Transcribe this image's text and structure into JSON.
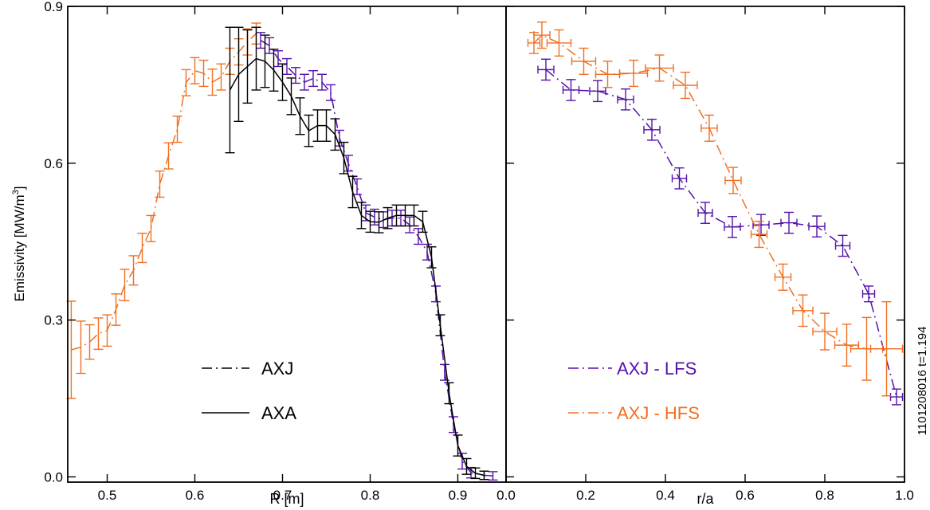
{
  "colors": {
    "axj_lfs": "#5511aa",
    "axj_hfs": "#f26f21",
    "black": "#000000"
  },
  "annotation": "1101208016  t=1.194",
  "chart_data": [
    {
      "type": "line",
      "xlabel": "R [m]",
      "ylabel": "Emissivity [MW/m³]",
      "ylabel_main": "Emissivity [MW/m",
      "ylabel_sup": "3",
      "ylabel_end": "]",
      "xlim": [
        0.455,
        0.955
      ],
      "ylim": [
        -0.01,
        0.9
      ],
      "xticks": [
        0.5,
        0.6,
        0.7,
        0.8,
        0.9
      ],
      "xtick_labels": [
        "0.5",
        "0.6",
        "0.7",
        "0.8",
        "0.9"
      ],
      "yticks": [
        0.0,
        0.3,
        0.6,
        0.9
      ],
      "ytick_labels": [
        "0.0",
        "0.3",
        "0.6",
        "0.9"
      ],
      "grid": false,
      "legend_placement": "bottom-center",
      "legend": [
        {
          "label": "AXJ",
          "style": "dash-dot"
        },
        {
          "label": "AXA",
          "style": "solid"
        }
      ],
      "series": [
        {
          "style": "dash-dot",
          "color": "#f26f21",
          "points": [
            [
              0.459,
              0.243,
              0.093
            ],
            [
              0.47,
              0.248,
              0.05
            ],
            [
              0.48,
              0.258,
              0.033
            ],
            [
              0.49,
              0.274,
              0.03
            ],
            [
              0.5,
              0.28,
              0.03
            ],
            [
              0.51,
              0.32,
              0.03
            ],
            [
              0.52,
              0.367,
              0.03
            ],
            [
              0.53,
              0.395,
              0.028
            ],
            [
              0.54,
              0.438,
              0.028
            ],
            [
              0.55,
              0.475,
              0.025
            ],
            [
              0.56,
              0.56,
              0.025
            ],
            [
              0.57,
              0.614,
              0.025
            ],
            [
              0.58,
              0.665,
              0.025
            ],
            [
              0.59,
              0.754,
              0.025
            ],
            [
              0.6,
              0.777,
              0.025
            ],
            [
              0.61,
              0.772,
              0.025
            ],
            [
              0.62,
              0.755,
              0.025
            ],
            [
              0.63,
              0.765,
              0.025
            ],
            [
              0.64,
              0.795,
              0.025
            ],
            [
              0.65,
              0.813,
              0.025
            ],
            [
              0.66,
              0.832,
              0.025
            ],
            [
              0.67,
              0.848,
              0.02
            ]
          ]
        },
        {
          "style": "dash-dot",
          "color": "#5511aa",
          "points": [
            [
              0.675,
              0.835,
              0.015
            ],
            [
              0.685,
              0.825,
              0.015
            ],
            [
              0.695,
              0.8,
              0.015
            ],
            [
              0.705,
              0.785,
              0.015
            ],
            [
              0.715,
              0.768,
              0.015
            ],
            [
              0.725,
              0.755,
              0.015
            ],
            [
              0.735,
              0.762,
              0.015
            ],
            [
              0.745,
              0.755,
              0.015
            ],
            [
              0.755,
              0.735,
              0.015
            ],
            [
              0.765,
              0.648,
              0.015
            ],
            [
              0.775,
              0.6,
              0.015
            ],
            [
              0.785,
              0.555,
              0.015
            ],
            [
              0.795,
              0.505,
              0.015
            ],
            [
              0.805,
              0.497,
              0.015
            ],
            [
              0.815,
              0.492,
              0.015
            ],
            [
              0.825,
              0.495,
              0.015
            ],
            [
              0.835,
              0.495,
              0.015
            ],
            [
              0.845,
              0.482,
              0.015
            ],
            [
              0.855,
              0.46,
              0.015
            ],
            [
              0.865,
              0.43,
              0.015
            ],
            [
              0.875,
              0.35,
              0.015
            ],
            [
              0.885,
              0.2,
              0.015
            ],
            [
              0.895,
              0.1,
              0.015
            ],
            [
              0.905,
              0.03,
              0.015
            ],
            [
              0.915,
              0.008,
              0.01
            ],
            [
              0.93,
              0.003,
              0.008
            ],
            [
              0.94,
              0.002,
              0.008
            ]
          ]
        },
        {
          "style": "solid",
          "color": "#000000",
          "points": [
            [
              0.64,
              0.74,
              0.12
            ],
            [
              0.65,
              0.77,
              0.09
            ],
            [
              0.66,
              0.785,
              0.07
            ],
            [
              0.67,
              0.8,
              0.06
            ],
            [
              0.68,
              0.795,
              0.05
            ],
            [
              0.69,
              0.778,
              0.04
            ],
            [
              0.7,
              0.755,
              0.035
            ],
            [
              0.71,
              0.728,
              0.035
            ],
            [
              0.72,
              0.69,
              0.035
            ],
            [
              0.73,
              0.662,
              0.03
            ],
            [
              0.74,
              0.672,
              0.03
            ],
            [
              0.75,
              0.672,
              0.03
            ],
            [
              0.76,
              0.655,
              0.03
            ],
            [
              0.77,
              0.61,
              0.03
            ],
            [
              0.78,
              0.545,
              0.03
            ],
            [
              0.79,
              0.5,
              0.025
            ],
            [
              0.8,
              0.488,
              0.02
            ],
            [
              0.81,
              0.487,
              0.02
            ],
            [
              0.82,
              0.495,
              0.02
            ],
            [
              0.83,
              0.5,
              0.02
            ],
            [
              0.84,
              0.5,
              0.02
            ],
            [
              0.85,
              0.5,
              0.02
            ],
            [
              0.86,
              0.488,
              0.02
            ],
            [
              0.87,
              0.42,
              0.02
            ],
            [
              0.88,
              0.29,
              0.02
            ],
            [
              0.89,
              0.16,
              0.02
            ],
            [
              0.9,
              0.06,
              0.02
            ],
            [
              0.91,
              0.02,
              0.015
            ],
            [
              0.92,
              0.007,
              0.01
            ],
            [
              0.93,
              0.003,
              0.008
            ]
          ]
        }
      ]
    },
    {
      "type": "line",
      "xlabel": "r/a",
      "ylabel": "",
      "xlim": [
        0.0,
        1.0
      ],
      "ylim": [
        -0.01,
        0.9
      ],
      "xticks": [
        0.0,
        0.2,
        0.4,
        0.6,
        0.8,
        1.0
      ],
      "xtick_labels": [
        "0.0",
        "0.2",
        "0.4",
        "0.6",
        "0.8",
        "1.0"
      ],
      "yticks": [
        0.0,
        0.3,
        0.6,
        0.9
      ],
      "grid": false,
      "legend_placement": "bottom-left",
      "legend": [
        {
          "label": "AXJ - LFS",
          "color": "#5511aa"
        },
        {
          "label": "AXJ - HFS",
          "color": "#f26f21"
        }
      ],
      "series": [
        {
          "name": "AXJ - LFS",
          "style": "dash-dot",
          "color": "#5511aa",
          "points": [
            [
              0.1,
              0.779,
              0.02,
              0.02
            ],
            [
              0.163,
              0.74,
              0.02,
              0.02
            ],
            [
              0.23,
              0.738,
              0.02,
              0.02
            ],
            [
              0.3,
              0.722,
              0.02,
              0.02
            ],
            [
              0.366,
              0.664,
              0.02,
              0.02
            ],
            [
              0.435,
              0.571,
              0.018,
              0.02
            ],
            [
              0.5,
              0.505,
              0.018,
              0.02
            ],
            [
              0.568,
              0.478,
              0.02,
              0.02
            ],
            [
              0.64,
              0.482,
              0.02,
              0.02
            ],
            [
              0.71,
              0.486,
              0.02,
              0.02
            ],
            [
              0.78,
              0.479,
              0.02,
              0.02
            ],
            [
              0.845,
              0.442,
              0.018,
              0.02
            ],
            [
              0.91,
              0.35,
              0.015,
              0.015
            ],
            [
              0.98,
              0.153,
              0.015,
              0.015
            ]
          ]
        },
        {
          "name": "AXJ - HFS",
          "style": "dash-dot",
          "color": "#f26f21",
          "points": [
            [
              0.07,
              0.83,
              0.015,
              0.02
            ],
            [
              0.09,
              0.845,
              0.02,
              0.025
            ],
            [
              0.133,
              0.83,
              0.03,
              0.025
            ],
            [
              0.195,
              0.795,
              0.03,
              0.025
            ],
            [
              0.255,
              0.77,
              0.03,
              0.025
            ],
            [
              0.32,
              0.772,
              0.035,
              0.025
            ],
            [
              0.385,
              0.782,
              0.035,
              0.025
            ],
            [
              0.45,
              0.749,
              0.03,
              0.025
            ],
            [
              0.51,
              0.667,
              0.02,
              0.025
            ],
            [
              0.57,
              0.567,
              0.02,
              0.025
            ],
            [
              0.635,
              0.464,
              0.02,
              0.025
            ],
            [
              0.695,
              0.382,
              0.02,
              0.025
            ],
            [
              0.745,
              0.318,
              0.025,
              0.03
            ],
            [
              0.8,
              0.278,
              0.03,
              0.035
            ],
            [
              0.855,
              0.252,
              0.03,
              0.04
            ],
            [
              0.905,
              0.245,
              0.04,
              0.06
            ],
            [
              0.955,
              0.245,
              0.04,
              0.09
            ]
          ]
        }
      ]
    }
  ]
}
